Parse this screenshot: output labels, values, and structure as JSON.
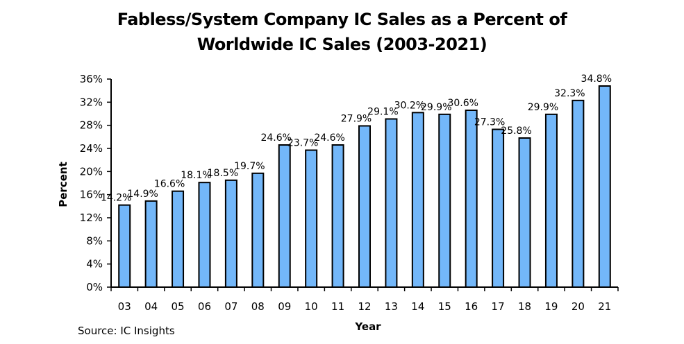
{
  "chart_data": {
    "type": "bar",
    "title": "Fabless/System Company IC Sales as a Percent of Worldwide IC Sales (2003-2021)",
    "title_lines": [
      "Fabless/System Company IC Sales as a Percent of",
      "Worldwide IC Sales (2003-2021)"
    ],
    "xlabel": "Year",
    "ylabel": "Percent",
    "categories": [
      "03",
      "04",
      "05",
      "06",
      "07",
      "08",
      "09",
      "10",
      "11",
      "12",
      "13",
      "14",
      "15",
      "16",
      "17",
      "18",
      "19",
      "20",
      "21"
    ],
    "values": [
      14.2,
      14.9,
      16.6,
      18.1,
      18.5,
      19.7,
      24.6,
      23.7,
      24.6,
      27.9,
      29.1,
      30.2,
      29.9,
      30.6,
      27.3,
      25.8,
      29.9,
      32.3,
      34.8
    ],
    "data_labels": [
      "14.2%",
      "14.9%",
      "16.6%",
      "18.1%",
      "18.5%",
      "19.7%",
      "24.6%",
      "23.7%",
      "24.6%",
      "27.9%",
      "29.1%",
      "30.2%",
      "29.9%",
      "30.6%",
      "27.3%",
      "25.8%",
      "29.9%",
      "32.3%",
      "34.8%"
    ],
    "ylim": [
      0,
      36
    ],
    "yticks": [
      0,
      4,
      8,
      12,
      16,
      20,
      24,
      28,
      32,
      36
    ],
    "ytick_labels": [
      "0%",
      "4%",
      "8%",
      "12%",
      "16%",
      "20%",
      "24%",
      "28%",
      "32%",
      "36%"
    ],
    "grid": false,
    "legend": "none",
    "bar_color": "#73B7F9",
    "bar_edge_color": "#000000",
    "source": "Source: IC Insights"
  }
}
